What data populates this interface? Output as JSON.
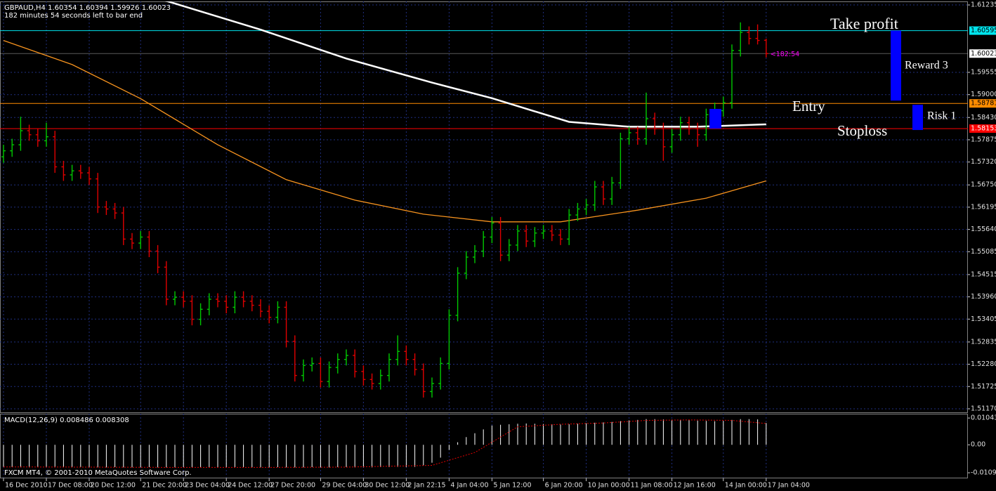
{
  "header": {
    "symbol_line": "GBPAUD,H4  1.60354 1.60394 1.59926 1.60023",
    "timer": "182 minutes 54 seconds left to bar end"
  },
  "footer": "FXCM MT4, © 2001-2010 MetaQuotes Software Corp.",
  "chart_data": [
    {
      "type": "ohlc",
      "categories": [
        "16 Dec 2010",
        null,
        null,
        null,
        null,
        "17 Dec 08:00",
        null,
        null,
        null,
        null,
        "20 Dec 12:00",
        null,
        null,
        null,
        null,
        null,
        "21 Dec 20:00",
        null,
        null,
        null,
        null,
        "23 Dec 04:00",
        null,
        null,
        null,
        null,
        "24 Dec 12:00",
        null,
        null,
        null,
        null,
        "27 Dec 20:00",
        null,
        null,
        null,
        null,
        null,
        "29 Dec 04:00",
        null,
        null,
        null,
        null,
        "30 Dec 12:00",
        null,
        null,
        null,
        null,
        "2 Jan 22:15",
        null,
        null,
        null,
        null,
        "4 Jan 04:00",
        null,
        null,
        null,
        null,
        "5 Jan 12:00",
        null,
        null,
        null,
        null,
        null,
        "6 Jan 20:00",
        null,
        null,
        null,
        null,
        "10 Jan 00:00",
        null,
        null,
        null,
        null,
        "11 Jan 08:00",
        null,
        null,
        null,
        null,
        "12 Jan 16:00",
        null,
        null,
        null,
        null,
        null,
        "14 Jan 00:00",
        null,
        null,
        null,
        null,
        "17 Jan 04:00"
      ],
      "open": [
        1.5745,
        1.576,
        1.5775,
        1.581,
        1.58,
        1.5785,
        1.5795,
        1.572,
        1.57,
        1.571,
        1.5705,
        1.569,
        1.562,
        1.5615,
        1.5605,
        1.554,
        1.553,
        1.5545,
        1.551,
        1.547,
        1.539,
        1.5395,
        1.5385,
        1.534,
        1.5365,
        1.539,
        1.5385,
        1.537,
        1.5395,
        1.5385,
        1.5375,
        1.536,
        1.5345,
        1.537,
        1.5285,
        1.52,
        1.5225,
        1.523,
        1.5185,
        1.522,
        1.524,
        1.525,
        1.521,
        1.519,
        1.518,
        1.52,
        1.524,
        1.526,
        1.524,
        1.5215,
        1.516,
        1.518,
        1.523,
        1.535,
        1.5455,
        1.5495,
        1.551,
        1.5545,
        1.558,
        1.55,
        1.5525,
        1.556,
        1.5535,
        1.5555,
        1.556,
        1.555,
        1.554,
        1.56,
        1.5615,
        1.5625,
        1.567,
        1.564,
        1.568,
        1.579,
        1.5805,
        1.579,
        1.584,
        1.5815,
        1.577,
        1.58,
        1.583,
        1.5815,
        1.58,
        1.585,
        1.586,
        1.588,
        1.601,
        1.6055,
        1.604,
        1.60354
      ],
      "high": [
        1.5775,
        1.579,
        1.5845,
        1.5825,
        1.5815,
        1.583,
        1.581,
        1.5735,
        1.5725,
        1.5725,
        1.572,
        1.5705,
        1.5635,
        1.563,
        1.562,
        1.5555,
        1.556,
        1.556,
        1.5525,
        1.5485,
        1.541,
        1.541,
        1.54,
        1.538,
        1.5405,
        1.5405,
        1.54,
        1.541,
        1.541,
        1.54,
        1.539,
        1.5375,
        1.5385,
        1.5385,
        1.53,
        1.524,
        1.5245,
        1.5245,
        1.5235,
        1.5255,
        1.5265,
        1.5265,
        1.5225,
        1.5205,
        1.5215,
        1.5255,
        1.53,
        1.5275,
        1.5255,
        1.523,
        1.5195,
        1.5245,
        1.5365,
        1.547,
        1.551,
        1.5525,
        1.556,
        1.5595,
        1.5595,
        1.554,
        1.5575,
        1.5575,
        1.557,
        1.5575,
        1.5575,
        1.5565,
        1.5615,
        1.563,
        1.564,
        1.5685,
        1.5685,
        1.5695,
        1.5805,
        1.582,
        1.582,
        1.5905,
        1.5855,
        1.583,
        1.5815,
        1.5845,
        1.5845,
        1.583,
        1.5865,
        1.588,
        1.5895,
        1.6025,
        1.608,
        1.607,
        1.6075,
        1.60394
      ],
      "low": [
        1.573,
        1.5745,
        1.576,
        1.5785,
        1.577,
        1.577,
        1.5705,
        1.5685,
        1.5685,
        1.569,
        1.5675,
        1.5605,
        1.56,
        1.559,
        1.5525,
        1.5515,
        1.5515,
        1.5495,
        1.5455,
        1.5375,
        1.5375,
        1.537,
        1.5325,
        1.5325,
        1.535,
        1.537,
        1.5355,
        1.5355,
        1.537,
        1.536,
        1.5345,
        1.533,
        1.533,
        1.527,
        1.5185,
        1.5185,
        1.521,
        1.517,
        1.517,
        1.5205,
        1.5225,
        1.5195,
        1.5175,
        1.5165,
        1.5165,
        1.5185,
        1.5225,
        1.5225,
        1.52,
        1.5145,
        1.5145,
        1.5165,
        1.5215,
        1.5335,
        1.544,
        1.548,
        1.5495,
        1.553,
        1.5485,
        1.5485,
        1.551,
        1.552,
        1.552,
        1.554,
        1.5535,
        1.5525,
        1.5525,
        1.5585,
        1.56,
        1.561,
        1.5625,
        1.5625,
        1.5665,
        1.5775,
        1.5775,
        1.5775,
        1.58,
        1.5735,
        1.5755,
        1.5785,
        1.58,
        1.577,
        1.5785,
        1.5835,
        1.5845,
        1.5865,
        1.5995,
        1.6025,
        1.6025,
        1.59926
      ],
      "close": [
        1.576,
        1.5775,
        1.581,
        1.58,
        1.5785,
        1.5795,
        1.572,
        1.57,
        1.571,
        1.5705,
        1.569,
        1.562,
        1.5615,
        1.5605,
        1.554,
        1.553,
        1.5545,
        1.551,
        1.547,
        1.539,
        1.5395,
        1.5385,
        1.534,
        1.5365,
        1.539,
        1.5385,
        1.537,
        1.5395,
        1.5385,
        1.5375,
        1.536,
        1.5345,
        1.537,
        1.5285,
        1.52,
        1.5225,
        1.523,
        1.5185,
        1.522,
        1.524,
        1.525,
        1.521,
        1.519,
        1.518,
        1.52,
        1.524,
        1.526,
        1.524,
        1.5215,
        1.516,
        1.518,
        1.523,
        1.535,
        1.5455,
        1.5495,
        1.551,
        1.5545,
        1.558,
        1.55,
        1.5525,
        1.556,
        1.5535,
        1.5555,
        1.556,
        1.555,
        1.554,
        1.56,
        1.5615,
        1.5625,
        1.567,
        1.564,
        1.568,
        1.579,
        1.5805,
        1.579,
        1.584,
        1.5815,
        1.577,
        1.58,
        1.583,
        1.5815,
        1.58,
        1.585,
        1.586,
        1.588,
        1.601,
        1.6055,
        1.604,
        1.6035,
        1.60023
      ],
      "up_color": "#00c800",
      "down_color": "#e00000",
      "ylim": [
        1.51082,
        1.61323
      ],
      "yticks": [
        {
          "value": 1.5117,
          "label": "1.51170"
        },
        1.51725,
        {
          "value": 1.5228,
          "label": "1.52280"
        },
        1.52835,
        1.53405,
        {
          "value": 1.5396,
          "label": "1.53960"
        },
        1.54515,
        1.55085,
        {
          "value": 1.5564,
          "label": "1.55640"
        },
        1.56195,
        {
          "value": 1.5675,
          "label": "1.56750"
        },
        {
          "value": 1.5732,
          "label": "1.57320"
        },
        1.57875,
        {
          "value": 1.5843,
          "label": "1.58430"
        },
        {
          "value": 1.59,
          "label": "1.59000"
        },
        1.59555,
        1.61235
      ],
      "grid": true,
      "grid_color": "#1f2f80",
      "overlays": [
        {
          "color": "#ffffff",
          "x": [
            18,
            30,
            40,
            50,
            57,
            66,
            73,
            81,
            89
          ],
          "values": [
            1.614,
            1.6062,
            1.599,
            1.593,
            1.5891,
            1.5832,
            1.582,
            1.582,
            1.5826
          ]
        },
        {
          "color": "#f7931e",
          "x": [
            0,
            8,
            16,
            25,
            33,
            41,
            49,
            57,
            65,
            74,
            82,
            89
          ],
          "values": [
            1.6035,
            1.5975,
            1.589,
            1.5775,
            1.5688,
            1.5637,
            1.5602,
            1.5583,
            1.5583,
            1.5612,
            1.5642,
            1.5685
          ]
        }
      ],
      "levels": [
        {
          "value": 1.60595,
          "color": "#00e5ee",
          "text_color": "#000000"
        },
        {
          "value": 1.60023,
          "color": "#ffffff",
          "text_color": "#000000"
        },
        {
          "value": 1.58781,
          "color": "#ff8c00",
          "text_color": "#000000"
        },
        {
          "value": 1.58153,
          "color": "#ff0000",
          "text_color": "#ffffff"
        }
      ],
      "countdown": "<182:54",
      "annotations": [
        "Take profit",
        "Entry",
        "Stoploss",
        "Reward 3",
        "Risk 1"
      ],
      "box_color": "#0000ff"
    },
    {
      "type": "macd",
      "title": "MACD(12,26,9) 0.008486 0.008308",
      "values": [
        -0.0086,
        -0.0087,
        -0.0088,
        -0.0088,
        -0.0087,
        -0.0087,
        -0.0088,
        -0.0088,
        -0.0088,
        -0.0087,
        -0.0088,
        -0.0088,
        -0.0088,
        -0.0087,
        -0.0088,
        -0.0088,
        -0.0088,
        -0.0087,
        -0.0088,
        -0.0088,
        -0.0088,
        -0.0087,
        -0.0088,
        -0.0088,
        -0.0087,
        -0.0087,
        -0.0088,
        -0.0088,
        -0.0087,
        -0.0088,
        -0.0088,
        -0.0088,
        -0.0087,
        -0.0088,
        -0.0088,
        -0.0088,
        -0.0087,
        -0.0088,
        -0.0088,
        -0.0087,
        -0.0087,
        -0.0088,
        -0.0088,
        -0.0088,
        -0.0087,
        -0.0087,
        -0.0086,
        -0.0087,
        -0.0086,
        -0.008,
        -0.007,
        -0.005,
        -0.002,
        0.001,
        0.003,
        0.0045,
        0.006,
        0.0075,
        0.0078,
        0.008,
        0.0082,
        0.0083,
        0.0082,
        0.0081,
        0.008,
        0.0079,
        0.008,
        0.0082,
        0.0084,
        0.0086,
        0.0087,
        0.0089,
        0.0092,
        0.0095,
        0.0097,
        0.01,
        0.01,
        0.0099,
        0.0098,
        0.0097,
        0.0096,
        0.0094,
        0.0093,
        0.0092,
        0.0093,
        0.0097,
        0.01,
        0.01,
        0.0099,
        0.008486
      ],
      "color": "#ffffff",
      "signal": {
        "color": "#e00000",
        "x": [
          0,
          10,
          20,
          30,
          40,
          50,
          55,
          60,
          65,
          70,
          75,
          80,
          85,
          89
        ],
        "values": [
          -0.0086,
          -0.0087,
          -0.0088,
          -0.0088,
          -0.0087,
          -0.008,
          -0.003,
          0.007,
          0.008,
          0.0085,
          0.0095,
          0.0097,
          0.0095,
          0.008308
        ]
      },
      "ylim": [
        -0.0128,
        0.0121
      ],
      "yticks": [
        0.01043,
        {
          "value": 0,
          "label": "0.00"
        },
        {
          "value": -0.0109,
          "label": "-0.01090"
        }
      ]
    }
  ]
}
